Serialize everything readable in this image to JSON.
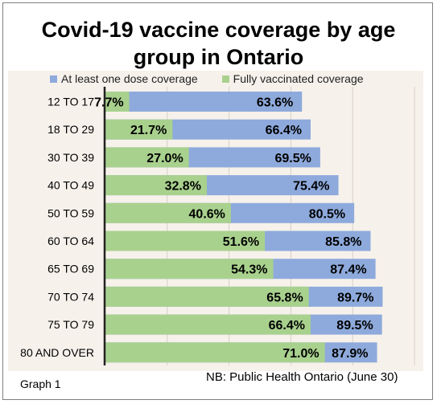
{
  "chart_data": {
    "type": "bar",
    "orientation": "horizontal",
    "title": "Covid-19 vaccine coverage by age group in Ontario",
    "title_line1": "Covid-19 vaccine coverage by age",
    "title_line2": "group in Ontario",
    "categories": [
      "12 TO 17",
      "18 TO 29",
      "30 TO 39",
      "40 TO 49",
      "50 TO 59",
      "60 TO 64",
      "65 TO 69",
      "70 TO 74",
      "75 TO 79",
      "80 AND OVER"
    ],
    "series": [
      {
        "name": "At least one dose coverage",
        "color": "#8eaadc",
        "values": [
          63.6,
          66.4,
          69.5,
          75.4,
          80.5,
          85.8,
          87.4,
          89.7,
          89.5,
          87.9
        ],
        "labels": [
          "63.6%",
          "66.4%",
          "69.5%",
          "75.4%",
          "80.5%",
          "85.8%",
          "87.4%",
          "89.7%",
          "89.5%",
          "87.9%"
        ]
      },
      {
        "name": "Fully vaccinated coverage",
        "color": "#a9d18e",
        "values": [
          7.7,
          21.7,
          27.0,
          32.8,
          40.6,
          51.6,
          54.3,
          65.8,
          66.4,
          71.0
        ],
        "labels": [
          "7.7%",
          "21.7%",
          "27.0%",
          "32.8%",
          "40.6%",
          "51.6%",
          "54.3%",
          "65.8%",
          "66.4%",
          "71.0%"
        ]
      }
    ],
    "xlim": [
      0,
      100
    ],
    "grid": true,
    "legend_position": "top",
    "xlabel": "",
    "ylabel": ""
  },
  "footer": {
    "graph_label": "Graph 1",
    "source_note": "NB: Public Health Ontario (June 30)"
  }
}
